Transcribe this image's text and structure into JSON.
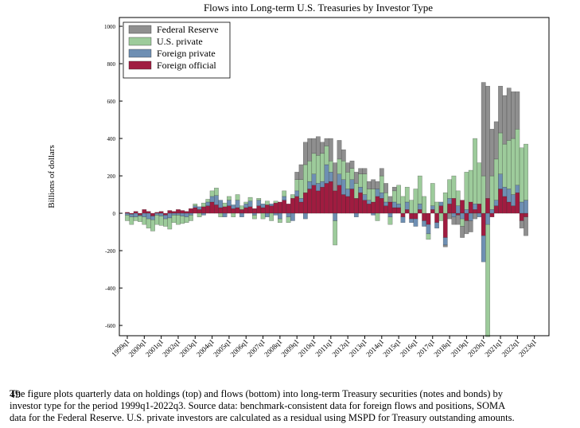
{
  "chart_data": {
    "type": "stacked-bar",
    "title": "Flows into Long-term U.S. Treasuries by Investor Type",
    "y_label": "Billions of dollars",
    "categories": [
      "1999q1",
      null,
      null,
      null,
      "2000q1",
      null,
      null,
      null,
      "2001q1",
      null,
      null,
      null,
      "2002q1",
      null,
      null,
      null,
      "2003q1",
      null,
      null,
      null,
      "2004q1",
      null,
      null,
      null,
      "2005q1",
      null,
      null,
      null,
      "2006q1",
      null,
      null,
      null,
      "2007q1",
      null,
      null,
      null,
      "2008q1",
      null,
      null,
      null,
      "2009q1",
      null,
      null,
      null,
      "2010q1",
      null,
      null,
      null,
      "2011q1",
      null,
      null,
      null,
      "2012q1",
      null,
      null,
      null,
      "2013q1",
      null,
      null,
      null,
      "2014q1",
      null,
      null,
      null,
      "2015q1",
      null,
      null,
      null,
      "2016q1",
      null,
      null,
      null,
      "2017q1",
      null,
      null,
      null,
      "2018q1",
      null,
      null,
      null,
      "2019q1",
      null,
      null,
      null,
      "2020q1",
      null,
      null,
      null,
      "2021q1",
      null,
      null,
      null,
      "2022q1",
      null,
      null,
      null,
      "2023q1"
    ],
    "series": [
      {
        "name": "Federal Reserve",
        "color": "#8f8f8f",
        "values": [
          0,
          0,
          0,
          0,
          0,
          0,
          0,
          0,
          0,
          0,
          0,
          0,
          0,
          0,
          0,
          0,
          0,
          0,
          0,
          0,
          0,
          0,
          0,
          0,
          0,
          0,
          0,
          0,
          0,
          0,
          0,
          0,
          0,
          0,
          0,
          0,
          0,
          0,
          0,
          0,
          40,
          80,
          120,
          120,
          80,
          100,
          60,
          40,
          120,
          150,
          100,
          60,
          50,
          40,
          60,
          30,
          30,
          40,
          50,
          40,
          40,
          50,
          30,
          20,
          0,
          0,
          0,
          0,
          0,
          0,
          0,
          0,
          0,
          0,
          0,
          -10,
          -30,
          -40,
          -50,
          -60,
          -70,
          -60,
          -30,
          0,
          500,
          600,
          250,
          200,
          250,
          260,
          280,
          250,
          200,
          -40,
          -100,
          null,
          null
        ]
      },
      {
        "name": "U.S. private",
        "color": "#9dcb9b",
        "values": [
          -30,
          -40,
          -20,
          -30,
          -40,
          -50,
          -60,
          -50,
          -50,
          -40,
          -60,
          -40,
          -50,
          -40,
          -30,
          -30,
          10,
          -20,
          20,
          15,
          30,
          40,
          -20,
          20,
          20,
          -20,
          30,
          20,
          10,
          20,
          -20,
          10,
          -30,
          20,
          -40,
          10,
          -20,
          30,
          -30,
          20,
          60,
          100,
          150,
          110,
          110,
          150,
          150,
          100,
          60,
          -130,
          80,
          100,
          90,
          60,
          80,
          70,
          110,
          60,
          70,
          -40,
          90,
          50,
          -40,
          60,
          100,
          90,
          80,
          70,
          130,
          150,
          90,
          -30,
          120,
          60,
          -40,
          110,
          100,
          120,
          80,
          -40,
          200,
          170,
          350,
          220,
          200,
          -600,
          180,
          220,
          220,
          230,
          260,
          300,
          300,
          290,
          300,
          null,
          null
        ]
      },
      {
        "name": "Foreign private",
        "color": "#6e8fb3",
        "values": [
          -10,
          -15,
          -20,
          -5,
          -20,
          -30,
          -20,
          -10,
          -15,
          -20,
          -25,
          -10,
          -10,
          -15,
          -20,
          -10,
          10,
          15,
          -10,
          20,
          30,
          50,
          40,
          -20,
          30,
          20,
          40,
          -20,
          20,
          30,
          -10,
          30,
          20,
          -20,
          10,
          -10,
          -30,
          20,
          -20,
          -40,
          30,
          20,
          -30,
          40,
          60,
          40,
          30,
          100,
          50,
          -40,
          60,
          80,
          40,
          50,
          -20,
          30,
          30,
          20,
          -10,
          40,
          30,
          20,
          -20,
          30,
          20,
          -30,
          40,
          -20,
          -40,
          30,
          -30,
          -50,
          20,
          -30,
          20,
          -40,
          30,
          -20,
          40,
          -30,
          20,
          -40,
          30,
          -20,
          -140,
          -60,
          20,
          30,
          80,
          50,
          70,
          60,
          40,
          60,
          70,
          null,
          null
        ]
      },
      {
        "name": "Foreign official",
        "color": "#a01c40",
        "values": [
          5,
          -5,
          10,
          -10,
          20,
          10,
          -15,
          5,
          10,
          -10,
          15,
          10,
          20,
          15,
          10,
          25,
          30,
          20,
          35,
          40,
          60,
          45,
          30,
          35,
          40,
          25,
          30,
          20,
          30,
          35,
          25,
          40,
          30,
          45,
          40,
          55,
          60,
          70,
          50,
          80,
          90,
          60,
          110,
          130,
          150,
          120,
          140,
          160,
          170,
          120,
          150,
          100,
          90,
          130,
          80,
          110,
          70,
          50,
          60,
          90,
          80,
          40,
          60,
          30,
          30,
          -20,
          20,
          -30,
          -30,
          20,
          -40,
          -60,
          20,
          -50,
          40,
          -130,
          50,
          80,
          -10,
          70,
          -40,
          60,
          20,
          50,
          -120,
          80,
          -20,
          40,
          130,
          90,
          60,
          40,
          110,
          -40,
          -20,
          null,
          null
        ]
      }
    ],
    "ylim": [
      -655,
      1047
    ],
    "yticks": [
      1000,
      800,
      600,
      400,
      200,
      0,
      -200,
      -400,
      -600
    ],
    "caption": [
      "The figure plots quarterly data on holdings (top) and flows (bottom) into long-term Treasury securities (notes and bonds) by",
      "investor type for the period 1999q1-2022q3.  Source data:  benchmark-consistent data for foreign flows and positions, SOMA",
      "data for the Federal Reserve. U.S. private investors are calculated as a residual using MSPD for Treasury outstanding amounts."
    ],
    "page_number": "49"
  }
}
